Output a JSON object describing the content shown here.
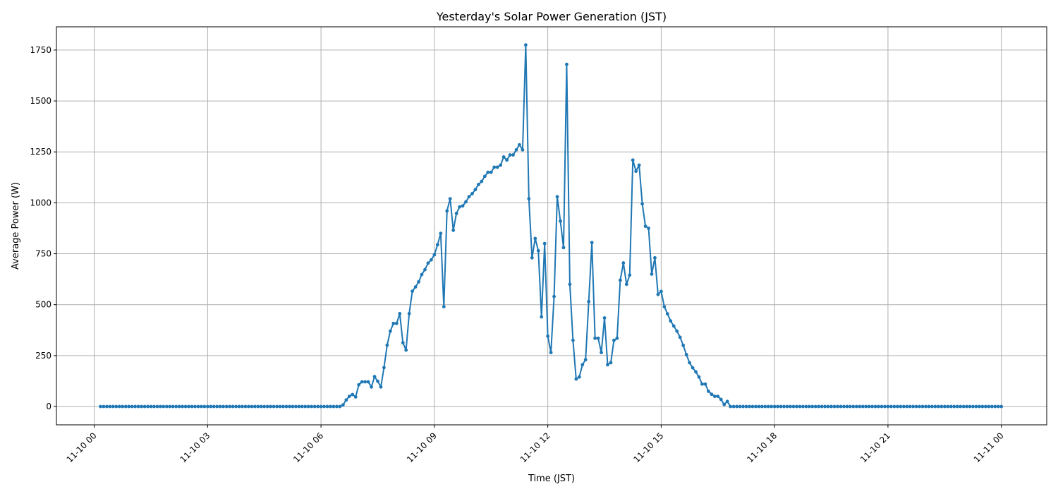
{
  "chart_data": {
    "type": "line",
    "title": "Yesterday's Solar Power Generation (JST)",
    "xlabel": "Time (JST)",
    "ylabel": "Average Power (W)",
    "xlim": [
      "11-09 23:00",
      "11-11 01:12"
    ],
    "ylim": [
      -90,
      1864
    ],
    "grid": true,
    "line_color": "#1f77b4",
    "marker": "circle",
    "x_ticks": [
      "11-10 00",
      "11-10 03",
      "11-10 06",
      "11-10 09",
      "11-10 12",
      "11-10 15",
      "11-10 18",
      "11-10 21",
      "11-11 00"
    ],
    "y_ticks": [
      0,
      250,
      500,
      750,
      1000,
      1250,
      1500,
      1750
    ],
    "series": [
      {
        "points": [
          [
            "11-10 00:10",
            0
          ],
          [
            "11-10 00:15",
            0
          ],
          [
            "11-10 00:20",
            0
          ],
          [
            "11-10 00:25",
            0
          ],
          [
            "11-10 00:30",
            0
          ],
          [
            "11-10 00:35",
            0
          ],
          [
            "11-10 00:40",
            0
          ],
          [
            "11-10 00:45",
            0
          ],
          [
            "11-10 00:50",
            0
          ],
          [
            "11-10 00:55",
            0
          ],
          [
            "11-10 01:00",
            0
          ],
          [
            "11-10 01:05",
            0
          ],
          [
            "11-10 01:10",
            0
          ],
          [
            "11-10 01:15",
            0
          ],
          [
            "11-10 01:20",
            0
          ],
          [
            "11-10 01:25",
            0
          ],
          [
            "11-10 01:30",
            0
          ],
          [
            "11-10 01:35",
            0
          ],
          [
            "11-10 01:40",
            0
          ],
          [
            "11-10 01:45",
            0
          ],
          [
            "11-10 01:50",
            0
          ],
          [
            "11-10 01:55",
            0
          ],
          [
            "11-10 02:00",
            0
          ],
          [
            "11-10 02:05",
            0
          ],
          [
            "11-10 02:10",
            0
          ],
          [
            "11-10 02:15",
            0
          ],
          [
            "11-10 02:20",
            0
          ],
          [
            "11-10 02:25",
            0
          ],
          [
            "11-10 02:30",
            0
          ],
          [
            "11-10 02:35",
            0
          ],
          [
            "11-10 02:40",
            0
          ],
          [
            "11-10 02:45",
            0
          ],
          [
            "11-10 02:50",
            0
          ],
          [
            "11-10 02:55",
            0
          ],
          [
            "11-10 03:00",
            0
          ],
          [
            "11-10 03:05",
            0
          ],
          [
            "11-10 03:10",
            0
          ],
          [
            "11-10 03:15",
            0
          ],
          [
            "11-10 03:20",
            0
          ],
          [
            "11-10 03:25",
            0
          ],
          [
            "11-10 03:30",
            0
          ],
          [
            "11-10 03:35",
            0
          ],
          [
            "11-10 03:40",
            0
          ],
          [
            "11-10 03:45",
            0
          ],
          [
            "11-10 03:50",
            0
          ],
          [
            "11-10 03:55",
            0
          ],
          [
            "11-10 04:00",
            0
          ],
          [
            "11-10 04:05",
            0
          ],
          [
            "11-10 04:10",
            0
          ],
          [
            "11-10 04:15",
            0
          ],
          [
            "11-10 04:20",
            0
          ],
          [
            "11-10 04:25",
            0
          ],
          [
            "11-10 04:30",
            0
          ],
          [
            "11-10 04:35",
            0
          ],
          [
            "11-10 04:40",
            0
          ],
          [
            "11-10 04:45",
            0
          ],
          [
            "11-10 04:50",
            0
          ],
          [
            "11-10 04:55",
            0
          ],
          [
            "11-10 05:00",
            0
          ],
          [
            "11-10 05:05",
            0
          ],
          [
            "11-10 05:10",
            0
          ],
          [
            "11-10 05:15",
            0
          ],
          [
            "11-10 05:20",
            0
          ],
          [
            "11-10 05:25",
            0
          ],
          [
            "11-10 05:30",
            0
          ],
          [
            "11-10 05:35",
            0
          ],
          [
            "11-10 05:40",
            0
          ],
          [
            "11-10 05:45",
            0
          ],
          [
            "11-10 05:50",
            0
          ],
          [
            "11-10 05:55",
            0
          ],
          [
            "11-10 06:00",
            0
          ],
          [
            "11-10 06:05",
            0
          ],
          [
            "11-10 06:10",
            0
          ],
          [
            "11-10 06:15",
            0
          ],
          [
            "11-10 06:20",
            0
          ],
          [
            "11-10 06:25",
            0
          ],
          [
            "11-10 06:30",
            0
          ],
          [
            "11-10 06:35",
            8
          ],
          [
            "11-10 06:40",
            32
          ],
          [
            "11-10 06:45",
            50
          ],
          [
            "11-10 06:50",
            59
          ],
          [
            "11-10 06:55",
            47
          ],
          [
            "11-10 07:00",
            107
          ],
          [
            "11-10 07:05",
            121
          ],
          [
            "11-10 07:10",
            121
          ],
          [
            "11-10 07:15",
            121
          ],
          [
            "11-10 07:20",
            96
          ],
          [
            "11-10 07:25",
            147
          ],
          [
            "11-10 07:30",
            124
          ],
          [
            "11-10 07:35",
            96
          ],
          [
            "11-10 07:40",
            191
          ],
          [
            "11-10 07:45",
            301
          ],
          [
            "11-10 07:50",
            370
          ],
          [
            "11-10 07:55",
            408
          ],
          [
            "11-10 08:00",
            408
          ],
          [
            "11-10 08:05",
            456
          ],
          [
            "11-10 08:10",
            313
          ],
          [
            "11-10 08:15",
            277
          ],
          [
            "11-10 08:20",
            456
          ],
          [
            "11-10 08:25",
            566
          ],
          [
            "11-10 08:30",
            587
          ],
          [
            "11-10 08:35",
            612
          ],
          [
            "11-10 08:40",
            648
          ],
          [
            "11-10 08:45",
            672
          ],
          [
            "11-10 08:50",
            704
          ],
          [
            "11-10 08:55",
            720
          ],
          [
            "11-10 09:00",
            745
          ],
          [
            "11-10 09:05",
            794
          ],
          [
            "11-10 09:10",
            850
          ],
          [
            "11-10 09:15",
            490
          ],
          [
            "11-10 09:20",
            960
          ],
          [
            "11-10 09:25",
            1020
          ],
          [
            "11-10 09:30",
            865
          ],
          [
            "11-10 09:35",
            948
          ],
          [
            "11-10 09:40",
            980
          ],
          [
            "11-10 09:45",
            985
          ],
          [
            "11-10 09:50",
            1005
          ],
          [
            "11-10 09:55",
            1030
          ],
          [
            "11-10 10:00",
            1045
          ],
          [
            "11-10 10:05",
            1065
          ],
          [
            "11-10 10:10",
            1090
          ],
          [
            "11-10 10:15",
            1105
          ],
          [
            "11-10 10:20",
            1130
          ],
          [
            "11-10 10:25",
            1150
          ],
          [
            "11-10 10:30",
            1150
          ],
          [
            "11-10 10:35",
            1175
          ],
          [
            "11-10 10:40",
            1175
          ],
          [
            "11-10 10:45",
            1185
          ],
          [
            "11-10 10:50",
            1225
          ],
          [
            "11-10 10:55",
            1210
          ],
          [
            "11-10 11:00",
            1235
          ],
          [
            "11-10 11:05",
            1235
          ],
          [
            "11-10 11:10",
            1260
          ],
          [
            "11-10 11:15",
            1285
          ],
          [
            "11-10 11:20",
            1260
          ],
          [
            "11-10 11:25",
            1775
          ],
          [
            "11-10 11:30",
            1020
          ],
          [
            "11-10 11:35",
            730
          ],
          [
            "11-10 11:40",
            825
          ],
          [
            "11-10 11:45",
            765
          ],
          [
            "11-10 11:50",
            440
          ],
          [
            "11-10 11:55",
            800
          ],
          [
            "11-10 12:00",
            345
          ],
          [
            "11-10 12:05",
            265
          ],
          [
            "11-10 12:10",
            540
          ],
          [
            "11-10 12:15",
            1030
          ],
          [
            "11-10 12:20",
            910
          ],
          [
            "11-10 12:25",
            780
          ],
          [
            "11-10 12:30",
            1680
          ],
          [
            "11-10 12:35",
            600
          ],
          [
            "11-10 12:40",
            325
          ],
          [
            "11-10 12:45",
            135
          ],
          [
            "11-10 12:50",
            145
          ],
          [
            "11-10 12:55",
            205
          ],
          [
            "11-10 13:00",
            230
          ],
          [
            "11-10 13:05",
            515
          ],
          [
            "11-10 13:10",
            805
          ],
          [
            "11-10 13:15",
            335
          ],
          [
            "11-10 13:20",
            335
          ],
          [
            "11-10 13:25",
            265
          ],
          [
            "11-10 13:30",
            435
          ],
          [
            "11-10 13:35",
            205
          ],
          [
            "11-10 13:40",
            215
          ],
          [
            "11-10 13:45",
            325
          ],
          [
            "11-10 13:50",
            335
          ],
          [
            "11-10 13:55",
            620
          ],
          [
            "11-10 14:00",
            705
          ],
          [
            "11-10 14:05",
            600
          ],
          [
            "11-10 14:10",
            645
          ],
          [
            "11-10 14:15",
            1210
          ],
          [
            "11-10 14:20",
            1155
          ],
          [
            "11-10 14:25",
            1185
          ],
          [
            "11-10 14:30",
            995
          ],
          [
            "11-10 14:35",
            885
          ],
          [
            "11-10 14:40",
            875
          ],
          [
            "11-10 14:45",
            650
          ],
          [
            "11-10 14:50",
            730
          ],
          [
            "11-10 14:55",
            550
          ],
          [
            "11-10 15:00",
            565
          ],
          [
            "11-10 15:05",
            490
          ],
          [
            "11-10 15:10",
            455
          ],
          [
            "11-10 15:15",
            420
          ],
          [
            "11-10 15:20",
            395
          ],
          [
            "11-10 15:25",
            370
          ],
          [
            "11-10 15:30",
            340
          ],
          [
            "11-10 15:35",
            300
          ],
          [
            "11-10 15:40",
            255
          ],
          [
            "11-10 15:45",
            215
          ],
          [
            "11-10 15:50",
            190
          ],
          [
            "11-10 15:55",
            170
          ],
          [
            "11-10 16:00",
            145
          ],
          [
            "11-10 16:05",
            110
          ],
          [
            "11-10 16:10",
            110
          ],
          [
            "11-10 16:15",
            75
          ],
          [
            "11-10 16:20",
            60
          ],
          [
            "11-10 16:25",
            50
          ],
          [
            "11-10 16:30",
            50
          ],
          [
            "11-10 16:35",
            35
          ],
          [
            "11-10 16:40",
            10
          ],
          [
            "11-10 16:45",
            25
          ],
          [
            "11-10 16:50",
            0
          ],
          [
            "11-10 16:55",
            0
          ],
          [
            "11-10 17:00",
            0
          ],
          [
            "11-10 17:05",
            0
          ],
          [
            "11-10 17:10",
            0
          ],
          [
            "11-10 17:15",
            0
          ],
          [
            "11-10 17:20",
            0
          ],
          [
            "11-10 17:25",
            0
          ],
          [
            "11-10 17:30",
            0
          ],
          [
            "11-10 17:35",
            0
          ],
          [
            "11-10 17:40",
            0
          ],
          [
            "11-10 17:45",
            0
          ],
          [
            "11-10 17:50",
            0
          ],
          [
            "11-10 17:55",
            0
          ],
          [
            "11-10 18:00",
            0
          ],
          [
            "11-10 18:05",
            0
          ],
          [
            "11-10 18:10",
            0
          ],
          [
            "11-10 18:15",
            0
          ],
          [
            "11-10 18:20",
            0
          ],
          [
            "11-10 18:25",
            0
          ],
          [
            "11-10 18:30",
            0
          ],
          [
            "11-10 18:35",
            0
          ],
          [
            "11-10 18:40",
            0
          ],
          [
            "11-10 18:45",
            0
          ],
          [
            "11-10 18:50",
            0
          ],
          [
            "11-10 18:55",
            0
          ],
          [
            "11-10 19:00",
            0
          ],
          [
            "11-10 19:05",
            0
          ],
          [
            "11-10 19:10",
            0
          ],
          [
            "11-10 19:15",
            0
          ],
          [
            "11-10 19:20",
            0
          ],
          [
            "11-10 19:25",
            0
          ],
          [
            "11-10 19:30",
            0
          ],
          [
            "11-10 19:35",
            0
          ],
          [
            "11-10 19:40",
            0
          ],
          [
            "11-10 19:45",
            0
          ],
          [
            "11-10 19:50",
            0
          ],
          [
            "11-10 19:55",
            0
          ],
          [
            "11-10 20:00",
            0
          ],
          [
            "11-10 20:05",
            0
          ],
          [
            "11-10 20:10",
            0
          ],
          [
            "11-10 20:15",
            0
          ],
          [
            "11-10 20:20",
            0
          ],
          [
            "11-10 20:25",
            0
          ],
          [
            "11-10 20:30",
            0
          ],
          [
            "11-10 20:35",
            0
          ],
          [
            "11-10 20:40",
            0
          ],
          [
            "11-10 20:45",
            0
          ],
          [
            "11-10 20:50",
            0
          ],
          [
            "11-10 20:55",
            0
          ],
          [
            "11-10 21:00",
            0
          ],
          [
            "11-10 21:05",
            0
          ],
          [
            "11-10 21:10",
            0
          ],
          [
            "11-10 21:15",
            0
          ],
          [
            "11-10 21:20",
            0
          ],
          [
            "11-10 21:25",
            0
          ],
          [
            "11-10 21:30",
            0
          ],
          [
            "11-10 21:35",
            0
          ],
          [
            "11-10 21:40",
            0
          ],
          [
            "11-10 21:45",
            0
          ],
          [
            "11-10 21:50",
            0
          ],
          [
            "11-10 21:55",
            0
          ],
          [
            "11-10 22:00",
            0
          ],
          [
            "11-10 22:05",
            0
          ],
          [
            "11-10 22:10",
            0
          ],
          [
            "11-10 22:15",
            0
          ],
          [
            "11-10 22:20",
            0
          ],
          [
            "11-10 22:25",
            0
          ],
          [
            "11-10 22:30",
            0
          ],
          [
            "11-10 22:35",
            0
          ],
          [
            "11-10 22:40",
            0
          ],
          [
            "11-10 22:45",
            0
          ],
          [
            "11-10 22:50",
            0
          ],
          [
            "11-10 22:55",
            0
          ],
          [
            "11-10 23:00",
            0
          ],
          [
            "11-10 23:05",
            0
          ],
          [
            "11-10 23:10",
            0
          ],
          [
            "11-10 23:15",
            0
          ],
          [
            "11-10 23:20",
            0
          ],
          [
            "11-10 23:25",
            0
          ],
          [
            "11-10 23:30",
            0
          ],
          [
            "11-10 23:35",
            0
          ],
          [
            "11-10 23:40",
            0
          ],
          [
            "11-10 23:45",
            0
          ],
          [
            "11-10 23:50",
            0
          ],
          [
            "11-10 23:55",
            0
          ],
          [
            "11-11 00:00",
            0
          ]
        ]
      }
    ]
  }
}
